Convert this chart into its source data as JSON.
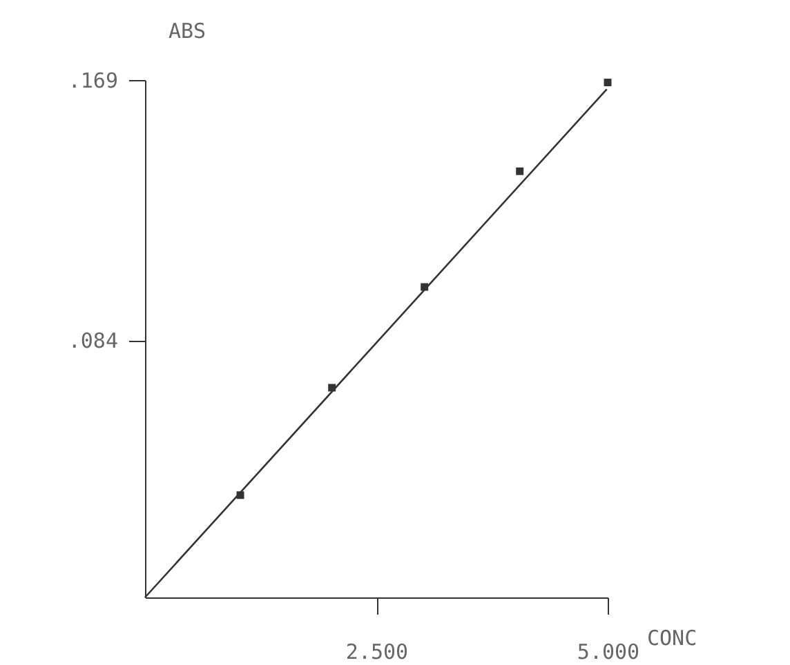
{
  "chart_data": {
    "type": "scatter",
    "xlabel": "CONC",
    "ylabel": "ABS",
    "xlim": [
      0,
      5
    ],
    "ylim": [
      0,
      0.169
    ],
    "xticks": [
      {
        "value": 2.5,
        "label": "2.500"
      },
      {
        "value": 5,
        "label": "5.000"
      }
    ],
    "yticks": [
      {
        "value": 0.084,
        "label": ".084"
      },
      {
        "value": 0.169,
        "label": ".169"
      }
    ],
    "grid": false,
    "series": [
      {
        "marker": "square",
        "color": "#333333",
        "x": [
          1.03,
          2.02,
          3.02,
          4.05,
          5.0
        ],
        "values": [
          0.0334,
          0.0685,
          0.1014,
          0.1392,
          0.1682
        ]
      },
      {
        "type": "line",
        "marker": "none",
        "color": "#333333",
        "x": [
          0,
          4.99
        ],
        "values": [
          0,
          0.166
        ]
      }
    ]
  }
}
